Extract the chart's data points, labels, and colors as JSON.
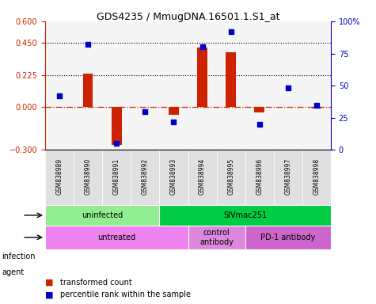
{
  "title": "GDS4235 / MmugDNA.16501.1.S1_at",
  "samples": [
    "GSM838989",
    "GSM838990",
    "GSM838991",
    "GSM838992",
    "GSM838993",
    "GSM838994",
    "GSM838995",
    "GSM838996",
    "GSM838997",
    "GSM838998"
  ],
  "transformed_count": [
    0.0,
    0.235,
    -0.265,
    0.0,
    -0.055,
    0.415,
    0.385,
    -0.04,
    0.0,
    -0.01
  ],
  "percentile_rank": [
    42,
    82,
    5,
    30,
    22,
    80,
    92,
    20,
    48,
    35
  ],
  "ylim_left": [
    -0.3,
    0.6
  ],
  "ylim_right": [
    0,
    100
  ],
  "yticks_left": [
    -0.3,
    0,
    0.225,
    0.45,
    0.6
  ],
  "yticks_right": [
    0,
    25,
    50,
    75,
    100
  ],
  "hlines": [
    0.225,
    0.45
  ],
  "infection_groups": [
    {
      "label": "uninfected",
      "start": 0,
      "end": 4,
      "color": "#90ee90"
    },
    {
      "label": "SIVmac251",
      "start": 4,
      "end": 10,
      "color": "#00cc44"
    }
  ],
  "agent_groups": [
    {
      "label": "untreated",
      "start": 0,
      "end": 5,
      "color": "#ee82ee"
    },
    {
      "label": "control\nantibody",
      "start": 5,
      "end": 7,
      "color": "#dd88dd"
    },
    {
      "label": "PD-1 antibody",
      "start": 7,
      "end": 10,
      "color": "#cc66cc"
    }
  ],
  "bar_color": "#cc2200",
  "dot_color": "#0000cc",
  "zero_line_color": "#cc2200",
  "bg_color": "#ffffff",
  "plot_bg": "#ffffff",
  "grid_color": "#cccccc"
}
